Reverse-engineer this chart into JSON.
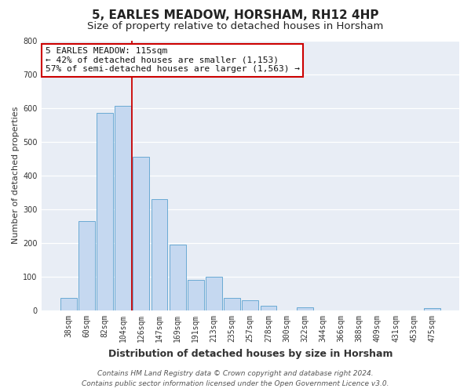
{
  "title": "5, EARLES MEADOW, HORSHAM, RH12 4HP",
  "subtitle": "Size of property relative to detached houses in Horsham",
  "xlabel": "Distribution of detached houses by size in Horsham",
  "ylabel": "Number of detached properties",
  "bar_labels": [
    "38sqm",
    "60sqm",
    "82sqm",
    "104sqm",
    "126sqm",
    "147sqm",
    "169sqm",
    "191sqm",
    "213sqm",
    "235sqm",
    "257sqm",
    "278sqm",
    "300sqm",
    "322sqm",
    "344sqm",
    "366sqm",
    "388sqm",
    "409sqm",
    "431sqm",
    "453sqm",
    "475sqm"
  ],
  "bar_values": [
    38,
    265,
    585,
    605,
    455,
    330,
    195,
    90,
    100,
    38,
    30,
    14,
    0,
    10,
    0,
    0,
    0,
    0,
    0,
    0,
    8
  ],
  "bar_color": "#c5d8f0",
  "bar_edge_color": "#6aaad4",
  "marker_line_color": "#cc0000",
  "ylim": [
    0,
    800
  ],
  "yticks": [
    0,
    100,
    200,
    300,
    400,
    500,
    600,
    700,
    800
  ],
  "annotation_title": "5 EARLES MEADOW: 115sqm",
  "annotation_line1": "← 42% of detached houses are smaller (1,153)",
  "annotation_line2": "57% of semi-detached houses are larger (1,563) →",
  "annotation_box_color": "#ffffff",
  "annotation_box_edge": "#cc0000",
  "footer_line1": "Contains HM Land Registry data © Crown copyright and database right 2024.",
  "footer_line2": "Contains public sector information licensed under the Open Government Licence v3.0.",
  "bg_color": "#ffffff",
  "plot_bg_color": "#e8edf5",
  "grid_color": "#ffffff",
  "title_fontsize": 11,
  "subtitle_fontsize": 9.5,
  "xlabel_fontsize": 9,
  "ylabel_fontsize": 8,
  "tick_fontsize": 7,
  "annotation_fontsize": 8,
  "footer_fontsize": 6.5
}
